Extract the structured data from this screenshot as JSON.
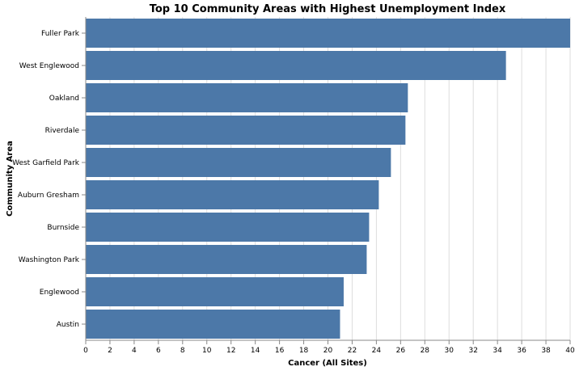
{
  "chart_data": {
    "type": "bar",
    "orientation": "horizontal",
    "title": "Top 10 Community Areas with Highest Unemployment Index",
    "xlabel": "Cancer (All Sites)",
    "ylabel": "Community Area",
    "xlim": [
      0,
      40
    ],
    "x_ticks": [
      0,
      2,
      4,
      6,
      8,
      10,
      12,
      14,
      16,
      18,
      20,
      22,
      24,
      26,
      28,
      30,
      32,
      34,
      36,
      38,
      40
    ],
    "grid": "vertical",
    "bar_color": "#4c78a8",
    "categories": [
      "Fuller Park",
      "West Englewood",
      "Oakland",
      "Riverdale",
      "West Garfield Park",
      "Auburn Gresham",
      "Burnside",
      "Washington Park",
      "Englewood",
      "Austin"
    ],
    "values": [
      40.1,
      34.7,
      26.6,
      26.4,
      25.2,
      24.2,
      23.4,
      23.2,
      21.3,
      21.0
    ]
  }
}
